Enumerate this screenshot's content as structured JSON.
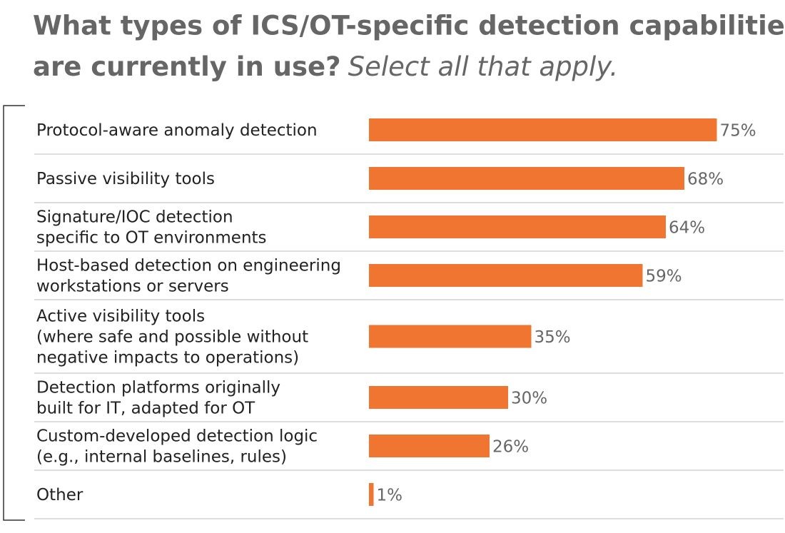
{
  "chart_data": {
    "type": "bar",
    "orientation": "horizontal",
    "title": [
      "What types of ICS/OT-specific detection capabilities",
      "are currently in use?"
    ],
    "subtitle": "Select all that apply.",
    "categories": [
      [
        "Protocol-aware anomaly detection"
      ],
      [
        "Passive visibility tools"
      ],
      [
        "Signature/IOC detection",
        "specific to OT environments"
      ],
      [
        "Host-based detection on engineering",
        "workstations or servers"
      ],
      [
        "Active visibility tools",
        "(where safe and possible without",
        "negative impacts to operations)"
      ],
      [
        "Detection platforms originally",
        "built for IT, adapted for OT"
      ],
      [
        "Custom-developed detection logic",
        "(e.g., internal baselines, rules)"
      ],
      [
        "Other"
      ]
    ],
    "values": [
      75,
      68,
      64,
      59,
      35,
      30,
      26,
      1
    ],
    "value_labels": [
      "75%",
      "68%",
      "64%",
      "59%",
      "35%",
      "30%",
      "26%",
      "1%"
    ],
    "color": "#f07530"
  }
}
